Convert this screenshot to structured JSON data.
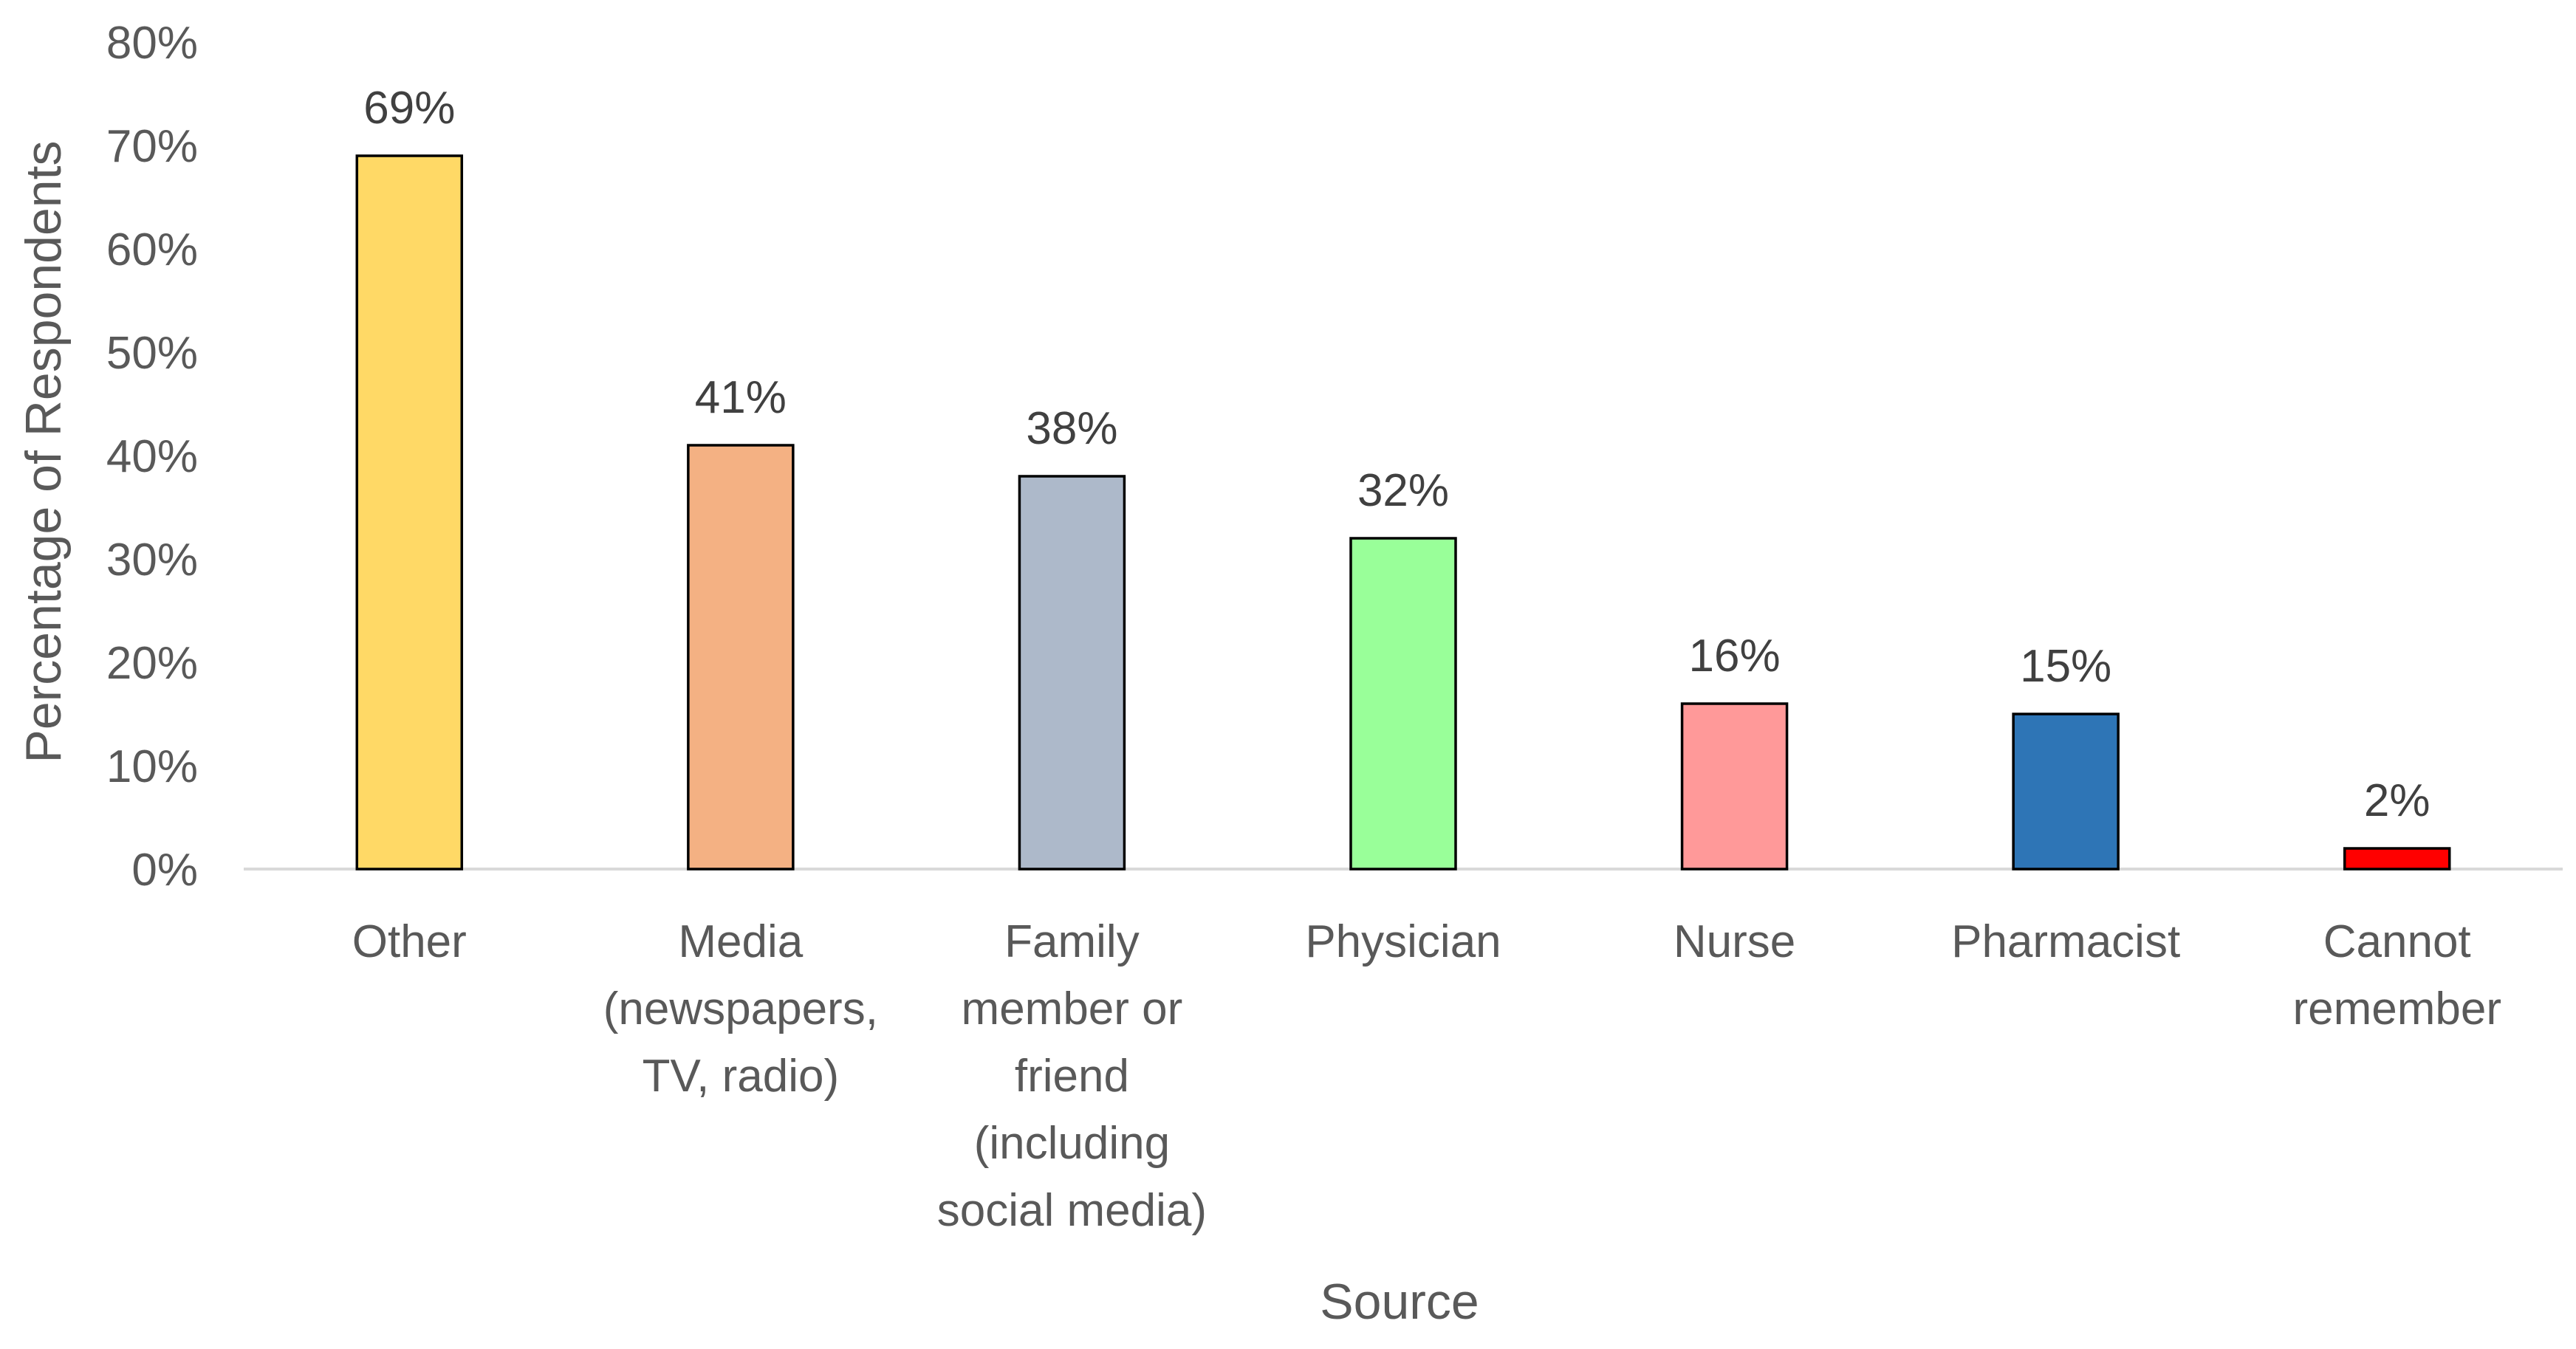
{
  "chart_data": {
    "type": "bar",
    "title": "",
    "xlabel": "Source",
    "ylabel": "Percentage of Respondents",
    "ylim": [
      0,
      80
    ],
    "yticks": [
      "0%",
      "10%",
      "20%",
      "30%",
      "40%",
      "50%",
      "60%",
      "70%",
      "80%"
    ],
    "grid": false,
    "legend": "none",
    "categories": [
      [
        "Other"
      ],
      [
        "Media",
        "(newspapers,",
        "TV, radio)"
      ],
      [
        "Family",
        "member or",
        "friend",
        "(including",
        "social media)"
      ],
      [
        "Physician"
      ],
      [
        "Nurse"
      ],
      [
        "Pharmacist"
      ],
      [
        "Cannot",
        "remember"
      ]
    ],
    "values": [
      69,
      41,
      38,
      32,
      16,
      15,
      2
    ],
    "data_labels": [
      "69%",
      "41%",
      "38%",
      "32%",
      "16%",
      "15%",
      "2%"
    ],
    "colors": [
      "#FFD966",
      "#F4B183",
      "#ADB9CA",
      "#99FF99",
      "#FF9999",
      "#2E75B6",
      "#FF0000"
    ]
  }
}
